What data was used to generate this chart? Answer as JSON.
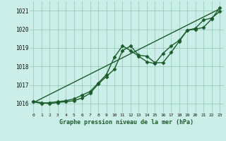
{
  "background_color": "#cceee8",
  "grid_color": "#99ccbb",
  "line_color": "#1a5c2a",
  "xlabel": "Graphe pression niveau de la mer (hPa)",
  "xlim": [
    -0.5,
    23.5
  ],
  "ylim": [
    1015.5,
    1021.5
  ],
  "yticks": [
    1016,
    1017,
    1018,
    1019,
    1020,
    1021
  ],
  "xticks": [
    0,
    1,
    2,
    3,
    4,
    5,
    6,
    7,
    8,
    9,
    10,
    11,
    12,
    13,
    14,
    15,
    16,
    17,
    18,
    19,
    20,
    21,
    22,
    23
  ],
  "series": [
    {
      "x": [
        0,
        1,
        2,
        3,
        4,
        5,
        6,
        7,
        8,
        9,
        10,
        11,
        12,
        13,
        14,
        15,
        16,
        17,
        18,
        19,
        20,
        21,
        22,
        23
      ],
      "y": [
        1016.1,
        1016.05,
        1016.0,
        1016.05,
        1016.1,
        1016.15,
        1016.3,
        1016.55,
        1017.05,
        1017.45,
        1017.85,
        1018.85,
        1019.1,
        1018.6,
        1018.55,
        1018.2,
        1018.2,
        1018.75,
        1019.35,
        1019.95,
        1020.0,
        1020.1,
        1020.55,
        1021.15
      ],
      "has_markers": true
    },
    {
      "x": [
        0,
        1,
        2,
        3,
        4,
        5,
        6,
        7,
        8,
        9,
        10,
        11,
        12,
        13,
        14,
        15,
        16,
        17,
        18,
        19,
        20,
        21,
        22,
        23
      ],
      "y": [
        1016.1,
        1016.0,
        1016.05,
        1016.1,
        1016.15,
        1016.25,
        1016.45,
        1016.65,
        1017.1,
        1017.55,
        1018.5,
        1019.1,
        1018.85,
        1018.55,
        1018.25,
        1018.15,
        1018.7,
        1019.1,
        1019.4,
        1019.95,
        1020.05,
        1020.5,
        1020.6,
        1020.95
      ],
      "has_markers": true
    },
    {
      "x": [
        0,
        23
      ],
      "y": [
        1016.05,
        1021.1
      ],
      "has_markers": false
    }
  ],
  "marker": "D",
  "marker_size": 2.5,
  "linewidth": 1.0
}
